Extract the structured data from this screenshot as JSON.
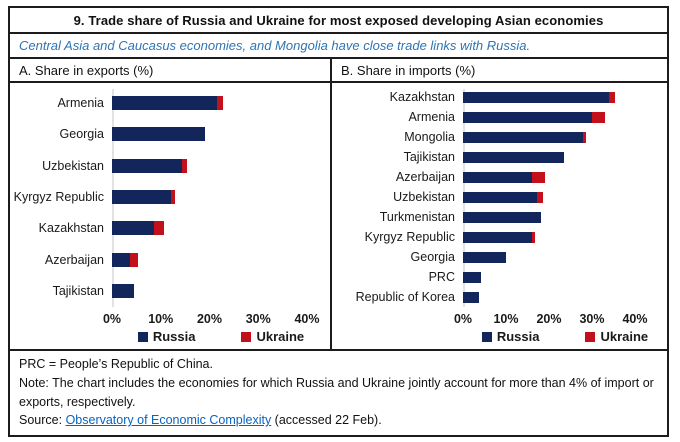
{
  "title": "9. Trade share of Russia and Ukraine for most exposed developing Asian economies",
  "subtitle": "Central Asia and Caucasus economies, and Mongolia have close trade links with Russia.",
  "colors": {
    "russia": "#13265c",
    "ukraine": "#c3111b",
    "subtitle_blue": "#2e74b5",
    "link_blue": "#0563c1",
    "axis_line_gray": "#e2e2e2",
    "border_black": "#1c1c1c"
  },
  "chart_data": [
    {
      "type": "bar",
      "orientation": "horizontal",
      "stacked": true,
      "title": "A. Share in exports (%)",
      "categories": [
        "Armenia",
        "Georgia",
        "Uzbekistan",
        "Kyrgyz Republic",
        "Kazakhstan",
        "Azerbaijan",
        "Tajikistan"
      ],
      "series": [
        {
          "name": "Russia",
          "color": "#13265c",
          "values": [
            21.5,
            19.0,
            14.3,
            12.0,
            8.7,
            3.6,
            4.5
          ]
        },
        {
          "name": "Ukraine",
          "color": "#c3111b",
          "values": [
            1.2,
            0,
            1.0,
            0.9,
            1.9,
            1.8,
            0
          ]
        }
      ],
      "xlim": [
        0,
        40
      ],
      "ticks": [
        "0%",
        "10%",
        "20%",
        "30%",
        "40%"
      ],
      "grid": false,
      "legend_position": "bottom"
    },
    {
      "type": "bar",
      "orientation": "horizontal",
      "stacked": true,
      "title": "B. Share in imports (%)",
      "categories": [
        "Kazakhstan",
        "Armenia",
        "Mongolia",
        "Tajikistan",
        "Azerbaijan",
        "Uzbekistan",
        "Turkmenistan",
        "Kyrgyz Republic",
        "Georgia",
        "PRC",
        "Republic of Korea"
      ],
      "series": [
        {
          "name": "Russia",
          "color": "#13265c",
          "values": [
            34.0,
            30.0,
            28.0,
            23.5,
            16.0,
            17.3,
            18.2,
            16.0,
            10.0,
            4.1,
            3.8
          ]
        },
        {
          "name": "Ukraine",
          "color": "#c3111b",
          "values": [
            1.4,
            3.0,
            0.7,
            0,
            3.0,
            1.2,
            0,
            0.7,
            0,
            0,
            0
          ]
        }
      ],
      "xlim": [
        0,
        40
      ],
      "ticks": [
        "0%",
        "10%",
        "20%",
        "30%",
        "40%"
      ],
      "grid": false,
      "legend_position": "bottom"
    }
  ],
  "footer": {
    "line1": "PRC = People’s Republic of China.",
    "line2": "Note: The chart includes the economies for which Russia and Ukraine jointly account for more than 4% of import or exports, respectively.",
    "source_prefix": "Source: ",
    "source_link": "Observatory of Economic Complexity",
    "source_suffix": " (accessed 22 Feb)."
  }
}
